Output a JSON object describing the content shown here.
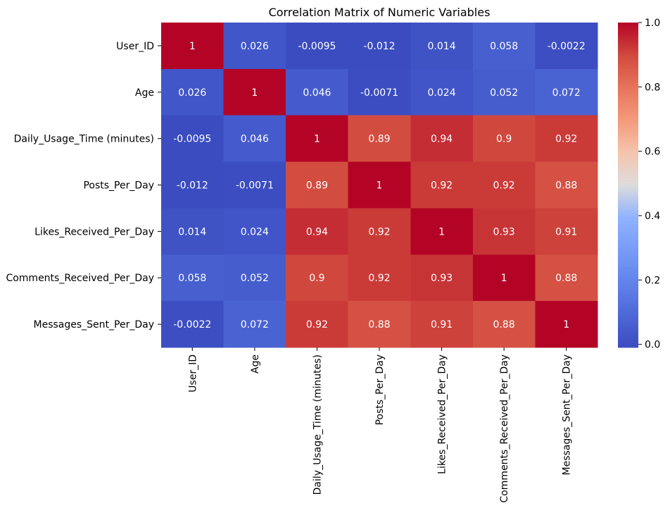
{
  "chart_data": {
    "type": "heatmap",
    "title": "Correlation Matrix of Numeric Variables",
    "xlabel": "",
    "ylabel": "",
    "row_labels": [
      "User_ID",
      "Age",
      "Daily_Usage_Time (minutes)",
      "Posts_Per_Day",
      "Likes_Received_Per_Day",
      "Comments_Received_Per_Day",
      "Messages_Sent_Per_Day"
    ],
    "col_labels": [
      "User_ID",
      "Age",
      "Daily_Usage_Time (minutes)",
      "Posts_Per_Day",
      "Likes_Received_Per_Day",
      "Comments_Received_Per_Day",
      "Messages_Sent_Per_Day"
    ],
    "values": [
      [
        1,
        0.026,
        -0.0095,
        -0.012,
        0.014,
        0.058,
        -0.0022
      ],
      [
        0.026,
        1,
        0.046,
        -0.0071,
        0.024,
        0.052,
        0.072
      ],
      [
        -0.0095,
        0.046,
        1,
        0.89,
        0.94,
        0.9,
        0.92
      ],
      [
        -0.012,
        -0.0071,
        0.89,
        1,
        0.92,
        0.92,
        0.88
      ],
      [
        0.014,
        0.024,
        0.94,
        0.92,
        1,
        0.93,
        0.91
      ],
      [
        0.058,
        0.052,
        0.9,
        0.92,
        0.93,
        1,
        0.88
      ],
      [
        -0.0022,
        0.072,
        0.92,
        0.88,
        0.91,
        0.88,
        1
      ]
    ],
    "annotations": [
      [
        "1",
        "0.026",
        "-0.0095",
        "-0.012",
        "0.014",
        "0.058",
        "-0.0022"
      ],
      [
        "0.026",
        "1",
        "0.046",
        "-0.0071",
        "0.024",
        "0.052",
        "0.072"
      ],
      [
        "-0.0095",
        "0.046",
        "1",
        "0.89",
        "0.94",
        "0.9",
        "0.92"
      ],
      [
        "-0.012",
        "-0.0071",
        "0.89",
        "1",
        "0.92",
        "0.92",
        "0.88"
      ],
      [
        "0.014",
        "0.024",
        "0.94",
        "0.92",
        "1",
        "0.93",
        "0.91"
      ],
      [
        "0.058",
        "0.052",
        "0.9",
        "0.92",
        "0.93",
        "1",
        "0.88"
      ],
      [
        "-0.0022",
        "0.072",
        "0.92",
        "0.88",
        "0.91",
        "0.88",
        "1"
      ]
    ],
    "colormap": "coolwarm",
    "vmin": -0.0095,
    "vmax": 1.0,
    "colorbar_ticks": [
      0.0,
      0.2,
      0.4,
      0.6,
      0.8,
      1.0
    ],
    "colorbar_tick_labels": [
      "0.0",
      "0.2",
      "0.4",
      "0.6",
      "0.8",
      "1.0"
    ]
  }
}
